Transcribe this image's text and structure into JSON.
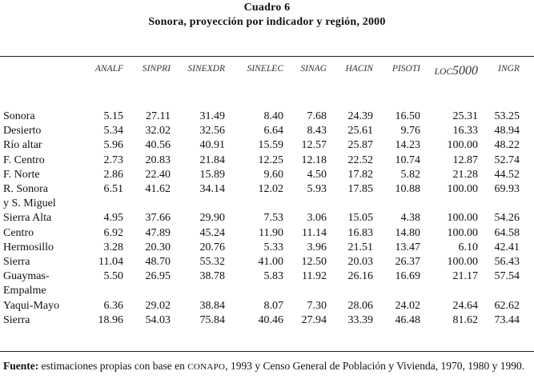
{
  "caption": {
    "number": "Cuadro 6",
    "title": "Sonora, proyección por indicador y región, 2000"
  },
  "columns": [
    {
      "pre": "ANALF",
      "big": ""
    },
    {
      "pre": "SINPRI",
      "big": ""
    },
    {
      "pre": "SINEXDR",
      "big": ""
    },
    {
      "pre": "SINELEC",
      "big": ""
    },
    {
      "pre": "SINAG",
      "big": ""
    },
    {
      "pre": "HACIN",
      "big": ""
    },
    {
      "pre": "PISOTI",
      "big": ""
    },
    {
      "pre": "LOC",
      "big": "5000"
    },
    {
      "pre": "INGR",
      "big": ""
    }
  ],
  "rows": [
    {
      "label": "Sonora",
      "values": [
        "5.15",
        "27.11",
        "31.49",
        "8.40",
        "7.68",
        "24.39",
        "16.50",
        "25.31",
        "53.25"
      ]
    },
    {
      "label": "Desierto",
      "values": [
        "5.34",
        "32.02",
        "32.56",
        "6.64",
        "8.43",
        "25.61",
        "9.76",
        "16.33",
        "48.94"
      ]
    },
    {
      "label": "Río altar",
      "values": [
        "5.96",
        "40.56",
        "40.91",
        "15.59",
        "12.57",
        "25.87",
        "14.23",
        "100.00",
        "48.22"
      ]
    },
    {
      "label": "F. Centro",
      "values": [
        "2.73",
        "20.83",
        "21.84",
        "12.25",
        "12.18",
        "22.52",
        "10.74",
        "12.87",
        "52.74"
      ]
    },
    {
      "label": "F. Norte",
      "values": [
        "2.86",
        "22.40",
        "15.89",
        "9.60",
        "4.50",
        "17.82",
        "5.82",
        "21.28",
        "44.52"
      ]
    },
    {
      "label": "R. Sonora",
      "values": [
        "6.51",
        "41.62",
        "34.14",
        "12.02",
        "5.93",
        "17.85",
        "10.88",
        "100.00",
        "69.93"
      ]
    },
    {
      "label": "y S. Miguel",
      "values": [
        "",
        "",
        "",
        "",
        "",
        "",
        "",
        "",
        ""
      ]
    },
    {
      "label": "Sierra Alta",
      "values": [
        "4.95",
        "37.66",
        "29.90",
        "7.53",
        "3.06",
        "15.05",
        "4.38",
        "100.00",
        "54.26"
      ]
    },
    {
      "label": "Centro",
      "values": [
        "6.92",
        "47.89",
        "45.24",
        "11.90",
        "11.14",
        "16.83",
        "14.80",
        "100.00",
        "64.58"
      ]
    },
    {
      "label": "Hermosillo",
      "values": [
        "3.28",
        "20.30",
        "20.76",
        "5.33",
        "3.96",
        "21.51",
        "13.47",
        "6.10",
        "42.41"
      ]
    },
    {
      "label": "Sierra",
      "values": [
        "11.04",
        "48.70",
        "55.32",
        "41.00",
        "12.50",
        "20.03",
        "26.37",
        "100.00",
        "56.43"
      ]
    },
    {
      "label": "Guaymas-",
      "values": [
        "5.50",
        "26.95",
        "38.78",
        "5.83",
        "11.92",
        "26.16",
        "16.69",
        "21.17",
        "57.54"
      ]
    },
    {
      "label": "Empalme",
      "values": [
        "",
        "",
        "",
        "",
        "",
        "",
        "",
        "",
        ""
      ]
    },
    {
      "label": "Yaqui-Mayo",
      "values": [
        "6.36",
        "29.02",
        "38.84",
        "8.07",
        "7.30",
        "28.06",
        "24.02",
        "24.64",
        "62.62"
      ]
    },
    {
      "label": "Sierra",
      "values": [
        "18.96",
        "54.03",
        "75.84",
        "40.46",
        "27.94",
        "33.39",
        "46.48",
        "81.62",
        "73.44"
      ]
    }
  ],
  "footnote": {
    "label": "Fuente:",
    "text_a": " estimaciones propias con base en ",
    "org": "CONAPO",
    "text_b": ", 1993 y Censo General de Población y Vivienda, 1970, 1980 y 1990."
  }
}
